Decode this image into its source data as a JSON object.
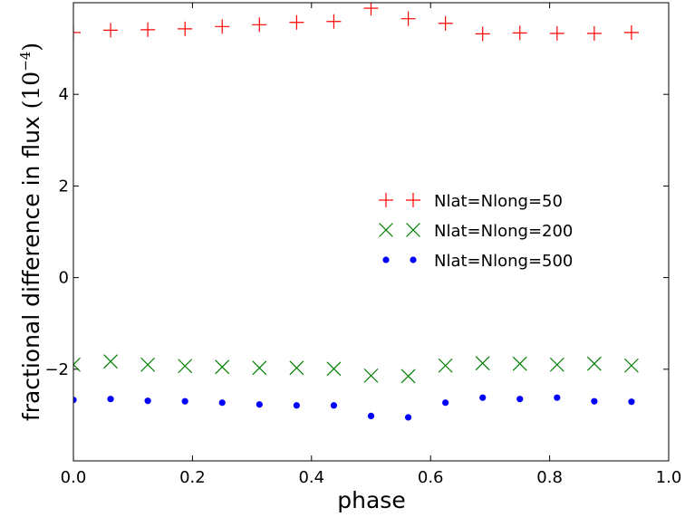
{
  "chart_data": {
    "type": "scatter",
    "xlabel": "phase",
    "ylabel_text": "fractional difference in flux ",
    "ylabel_unit": "(10",
    "ylabel_exponent": "−4",
    "ylabel_close": ")",
    "xlim": [
      0.0,
      1.0
    ],
    "ylim": [
      -4.0,
      6.0
    ],
    "xticks": [
      0.0,
      0.2,
      0.4,
      0.6,
      0.8,
      1.0
    ],
    "xtick_labels": [
      "0.0",
      "0.2",
      "0.4",
      "0.6",
      "0.8",
      "1.0"
    ],
    "yticks": [
      -2,
      0,
      2,
      4
    ],
    "ytick_labels": [
      "−2",
      "0",
      "2",
      "4"
    ],
    "grid": false,
    "legend_position": "center-right",
    "series": [
      {
        "name": "Nlat=Nlong=50",
        "marker": "plus",
        "color": "#ff0000",
        "x": [
          0.0,
          0.0625,
          0.125,
          0.1875,
          0.25,
          0.3125,
          0.375,
          0.4375,
          0.5,
          0.5625,
          0.625,
          0.6875,
          0.75,
          0.8125,
          0.875,
          0.9375
        ],
        "y": [
          5.35,
          5.4,
          5.41,
          5.43,
          5.48,
          5.52,
          5.57,
          5.59,
          5.88,
          5.65,
          5.55,
          5.32,
          5.34,
          5.33,
          5.33,
          5.35
        ]
      },
      {
        "name": "Nlat=Nlong=200",
        "marker": "x",
        "color": "#008000",
        "x": [
          0.0,
          0.0625,
          0.125,
          0.1875,
          0.25,
          0.3125,
          0.375,
          0.4375,
          0.5,
          0.5625,
          0.625,
          0.6875,
          0.75,
          0.8125,
          0.875,
          0.9375
        ],
        "y": [
          -1.9,
          -1.83,
          -1.9,
          -1.93,
          -1.95,
          -1.97,
          -1.97,
          -1.99,
          -2.14,
          -2.15,
          -1.92,
          -1.87,
          -1.88,
          -1.9,
          -1.88,
          -1.92
        ]
      },
      {
        "name": "Nlat=Nlong=500",
        "marker": "dot",
        "color": "#0000ff",
        "x": [
          0.0,
          0.0625,
          0.125,
          0.1875,
          0.25,
          0.3125,
          0.375,
          0.4375,
          0.5,
          0.5625,
          0.625,
          0.6875,
          0.75,
          0.8125,
          0.875,
          0.9375
        ],
        "y": [
          -2.67,
          -2.65,
          -2.69,
          -2.7,
          -2.73,
          -2.77,
          -2.79,
          -2.79,
          -3.02,
          -3.05,
          -2.73,
          -2.62,
          -2.65,
          -2.62,
          -2.7,
          -2.71
        ]
      }
    ]
  }
}
